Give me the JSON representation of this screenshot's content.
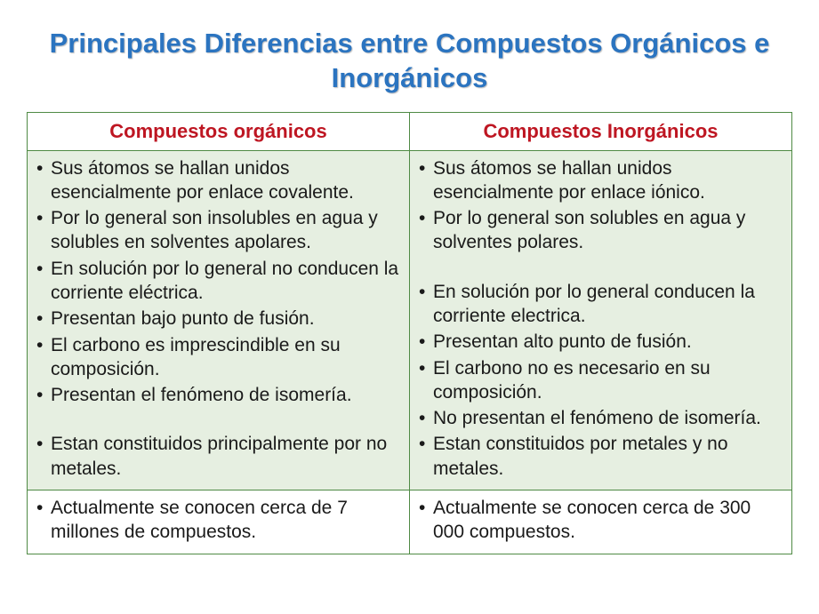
{
  "title": "Principales Diferencias entre Compuestos Orgánicos e Inorgánicos",
  "table": {
    "columns": [
      "Compuestos orgánicos",
      "Compuestos Inorgánicos"
    ],
    "header_color": "#be1622",
    "border_color": "#4f8a44",
    "shaded_bg": "#e6efe1",
    "plain_bg": "#ffffff",
    "title_color": "#2b74c0",
    "font_family": "Verdana",
    "title_fontsize": 31,
    "header_fontsize": 22,
    "cell_fontsize": 21,
    "rows": [
      {
        "shaded": true,
        "organic": [
          "Sus átomos se hallan unidos esencialmente por enlace covalente.",
          "Por lo general son insolubles en agua y solubles en solventes apolares.",
          "En solución por lo general no conducen la corriente eléctrica.",
          "Presentan bajo punto de fusión.",
          "El carbono es imprescindible en su composición.",
          "Presentan el fenómeno de isomería.",
          "Estan constituidos principalmente por no metales."
        ],
        "organic_spacer_before_index": 6,
        "inorganic": [
          "Sus átomos se hallan unidos esencialmente por enlace iónico.",
          "Por lo general son solubles en agua y solventes polares.",
          "En solución por lo general conducen la corriente electrica.",
          "Presentan alto punto de fusión.",
          "El carbono no es necesario en su composición.",
          "No presentan el fenómeno de isomería.",
          "Estan constituidos por metales y no metales."
        ],
        "inorganic_spacer_before_index": 2
      },
      {
        "shaded": false,
        "organic": [
          "Actualmente se conocen cerca de 7 millones de compuestos."
        ],
        "inorganic": [
          "Actualmente se conocen cerca de 300 000 compuestos."
        ]
      }
    ]
  }
}
